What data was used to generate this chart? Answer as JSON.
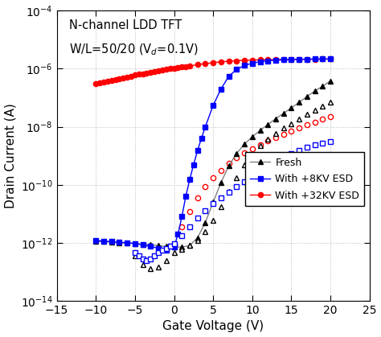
{
  "title_line1": "N-channel LDD TFT",
  "title_line2": "W/L=50/20 (V$_d$=0.1V)",
  "xlabel": "Gate Voltage (V)",
  "ylabel": "Drain Current (A)",
  "xlim": [
    -15,
    25
  ],
  "ylim_log": [
    -14,
    -4
  ],
  "xticks": [
    -15,
    -10,
    -5,
    0,
    5,
    10,
    15,
    20,
    25
  ],
  "background_color": "#ffffff",
  "grid_color": "#b0b0b0",
  "fresh_color": "#000000",
  "fresh_line_color": "#808080",
  "esd8_color": "#0000ff",
  "esd32_color": "#ff0000",
  "fresh_fwd_vg": [
    -10,
    -9,
    -8,
    -7,
    -6,
    -5,
    -4,
    -3,
    -2,
    -1,
    0,
    1,
    2,
    3,
    4,
    5,
    6,
    7,
    8,
    9,
    10,
    11,
    12,
    13,
    14,
    15,
    16,
    17,
    18,
    19,
    20
  ],
  "fresh_fwd_id": [
    1.1e-12,
    1.1e-12,
    1.05e-12,
    1e-12,
    9.8e-13,
    9.5e-13,
    9e-13,
    8.5e-13,
    8e-13,
    7.5e-13,
    7e-13,
    7.2e-13,
    8e-13,
    1.5e-12,
    5e-12,
    2.5e-11,
    1.2e-10,
    4.5e-10,
    1.2e-09,
    2.5e-09,
    4.5e-09,
    7.5e-09,
    1.2e-08,
    1.9e-08,
    2.9e-08,
    4.5e-08,
    7e-08,
    1.1e-07,
    1.7e-07,
    2.5e-07,
    3.8e-07
  ],
  "fresh_rev_vg": [
    -5,
    -4,
    -3,
    -2,
    -1,
    0,
    1,
    2,
    3,
    4,
    5,
    6,
    7,
    8,
    9,
    10,
    11,
    12,
    13,
    14,
    15,
    16,
    17,
    18,
    19,
    20
  ],
  "fresh_rev_id": [
    3.5e-13,
    1.8e-13,
    1.3e-13,
    1.5e-13,
    2.5e-13,
    4.5e-13,
    6e-13,
    8e-13,
    1.2e-12,
    2.5e-12,
    6e-12,
    1.8e-11,
    6e-11,
    1.8e-10,
    5e-10,
    1.1e-09,
    2.2e-09,
    3.8e-09,
    6e-09,
    9e-09,
    1.3e-08,
    1.9e-08,
    2.7e-08,
    3.8e-08,
    5.2e-08,
    7.2e-08
  ],
  "esd8_fwd_vg": [
    -10,
    -9,
    -8,
    -7,
    -6,
    -5,
    -4,
    -3,
    -2,
    -1,
    0,
    0.5,
    1,
    1.5,
    2,
    2.5,
    3,
    3.5,
    4,
    5,
    6,
    7,
    8,
    9,
    10,
    11,
    12,
    13,
    14,
    15,
    16,
    17,
    18,
    19,
    20
  ],
  "esd8_fwd_id": [
    1.2e-12,
    1.15e-12,
    1.1e-12,
    1.05e-12,
    1e-12,
    9.5e-13,
    8.5e-13,
    7.5e-13,
    6.5e-13,
    5.5e-13,
    7e-13,
    2e-12,
    8e-12,
    4e-11,
    1.5e-10,
    5e-10,
    1.5e-09,
    4e-09,
    1e-08,
    5.5e-08,
    2e-07,
    5.5e-07,
    9.5e-07,
    1.3e-06,
    1.55e-06,
    1.75e-06,
    1.88e-06,
    1.97e-06,
    2.04e-06,
    2.09e-06,
    2.12e-06,
    2.14e-06,
    2.16e-06,
    2.17e-06,
    2.18e-06
  ],
  "esd8_rev_vg": [
    -5,
    -4.5,
    -4,
    -3.5,
    -3,
    -2.5,
    -2,
    -1.5,
    -1,
    -0.5,
    0,
    1,
    2,
    3,
    4,
    5,
    6,
    7,
    8,
    9,
    10,
    11,
    12,
    13,
    14,
    15,
    16,
    17,
    18,
    19,
    20
  ],
  "esd8_rev_id": [
    4.5e-13,
    3.5e-13,
    2.8e-13,
    2.5e-13,
    2.8e-13,
    3.5e-13,
    4.5e-13,
    5.5e-13,
    6.5e-13,
    7.5e-13,
    9.5e-13,
    1.8e-12,
    3.5e-12,
    7e-12,
    1.3e-11,
    2.2e-11,
    3.5e-11,
    5.5e-11,
    8.5e-11,
    1.3e-10,
    2e-10,
    3e-10,
    4.5e-10,
    6.5e-10,
    9e-10,
    1.2e-09,
    1.55e-09,
    1.95e-09,
    2.35e-09,
    2.75e-09,
    3.15e-09
  ],
  "esd32_fwd_vg": [
    -10,
    -9.5,
    -9,
    -8.5,
    -8,
    -7.5,
    -7,
    -6.5,
    -6,
    -5.5,
    -5,
    -4.5,
    -4,
    -3.5,
    -3,
    -2.5,
    -2,
    -1.5,
    -1,
    -0.5,
    0,
    0.5,
    1,
    1.5,
    2,
    3,
    4,
    5,
    6,
    7,
    8,
    9,
    10,
    11,
    12,
    13,
    14,
    15,
    16,
    17,
    18,
    19,
    20
  ],
  "esd32_fwd_id": [
    3e-07,
    3.3e-07,
    3.5e-07,
    3.8e-07,
    4e-07,
    4.3e-07,
    4.6e-07,
    4.9e-07,
    5.2e-07,
    5.6e-07,
    6e-07,
    6.4e-07,
    6.8e-07,
    7.2e-07,
    7.7e-07,
    8.2e-07,
    8.6e-07,
    9e-07,
    9.5e-07,
    1e-06,
    1.05e-06,
    1.1e-06,
    1.15e-06,
    1.2e-06,
    1.25e-06,
    1.38e-06,
    1.5e-06,
    1.63e-06,
    1.73e-06,
    1.82e-06,
    1.89e-06,
    1.95e-06,
    1.99e-06,
    2.03e-06,
    2.06e-06,
    2.08e-06,
    2.1e-06,
    2.11e-06,
    2.12e-06,
    2.13e-06,
    2.14e-06,
    2.15e-06,
    2.16e-06
  ],
  "esd32_rev_vg": [
    0,
    1,
    2,
    3,
    4,
    5,
    6,
    7,
    8,
    9,
    10,
    11,
    12,
    13,
    14,
    15,
    16,
    17,
    18,
    19,
    20
  ],
  "esd32_rev_id": [
    9e-13,
    3.5e-12,
    1.2e-11,
    3.5e-11,
    8.5e-11,
    1.8e-10,
    3.2e-10,
    5.5e-10,
    8.5e-10,
    1.25e-09,
    1.75e-09,
    2.4e-09,
    3.2e-09,
    4.2e-09,
    5.5e-09,
    7e-09,
    9e-09,
    1.15e-08,
    1.45e-08,
    1.8e-08,
    2.2e-08
  ]
}
